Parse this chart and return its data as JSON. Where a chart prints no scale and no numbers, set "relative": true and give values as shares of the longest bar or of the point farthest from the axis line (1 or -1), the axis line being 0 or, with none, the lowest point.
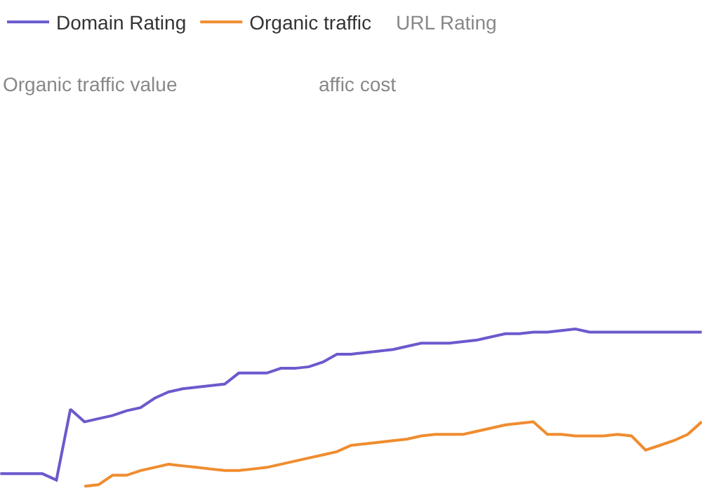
{
  "chart_data": {
    "type": "line",
    "relative": true,
    "legend": "top",
    "marker": "none",
    "line_style": "solid",
    "categories": [
      null,
      null,
      null,
      null,
      null,
      null,
      null,
      null,
      null,
      null,
      null,
      null,
      null,
      null,
      null,
      null,
      null,
      null,
      null,
      null,
      null,
      null,
      null,
      null,
      null,
      null,
      null,
      null,
      null,
      null,
      null,
      null,
      null,
      null,
      null,
      null,
      null,
      null,
      null,
      null,
      null,
      null,
      null,
      null,
      null,
      null,
      null,
      null,
      null,
      null,
      null
    ],
    "series": [
      {
        "name": "Domain Rating",
        "color": "#6a5acd",
        "values": [
          0.08,
          0.08,
          0.08,
          0.08,
          0.04,
          0.49,
          0.41,
          0.43,
          0.45,
          0.48,
          0.5,
          0.56,
          0.6,
          0.62,
          0.63,
          0.64,
          0.65,
          0.72,
          0.72,
          0.72,
          0.75,
          0.75,
          0.76,
          0.79,
          0.84,
          0.84,
          0.85,
          0.86,
          0.87,
          0.89,
          0.91,
          0.91,
          0.91,
          0.92,
          0.93,
          0.95,
          0.97,
          0.97,
          0.98,
          0.98,
          0.99,
          1,
          0.98,
          0.98,
          0.98,
          0.98,
          0.98,
          0.98,
          0.98,
          0.98,
          0.98
        ]
      },
      {
        "name": "Organic traffic",
        "color": "#f08c2e",
        "values": [
          null,
          null,
          null,
          null,
          null,
          null,
          0,
          0.01,
          0.07,
          0.07,
          0.1,
          0.12,
          0.14,
          0.13,
          0.12,
          0.11,
          0.1,
          0.1,
          0.11,
          0.12,
          0.14,
          0.16,
          0.18,
          0.2,
          0.22,
          0.26,
          0.27,
          0.28,
          0.29,
          0.3,
          0.32,
          0.33,
          0.33,
          0.33,
          0.35,
          0.37,
          0.39,
          0.4,
          0.41,
          0.33,
          0.33,
          0.32,
          0.32,
          0.32,
          0.33,
          0.32,
          0.23,
          0.26,
          0.29,
          0.33,
          0.41
        ]
      }
    ],
    "annotations": [
      "URL Rating",
      "Organic traffic value",
      "affic cost"
    ]
  }
}
